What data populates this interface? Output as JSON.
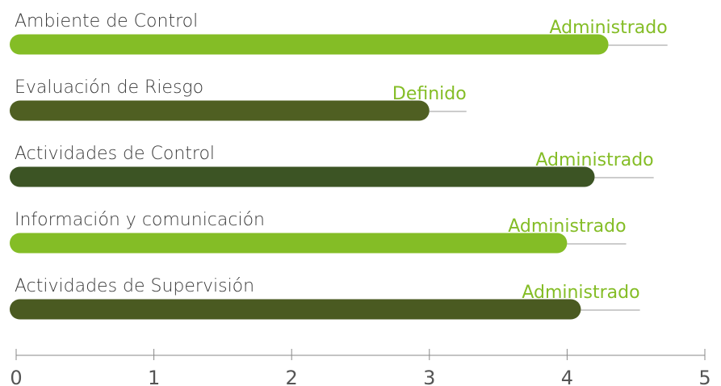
{
  "chart_data": {
    "type": "hbar",
    "categories": [
      "Ambiente de Control",
      "Evaluación de Riesgo",
      "Actividades de Control",
      "Información y comunicación",
      "Actividades de Supervisión"
    ],
    "values": [
      4.3,
      3.0,
      4.2,
      4.0,
      4.1
    ],
    "levels": [
      "Administrado",
      "Definido",
      "Administrado",
      "Administrado",
      "Administrado"
    ],
    "colors": [
      "#84bd26",
      "#4f5f22",
      "#3c5424",
      "#84bd26",
      "#4a5a21"
    ],
    "xlim": [
      0,
      5
    ],
    "xticks": [
      0,
      1,
      2,
      3,
      4,
      5
    ]
  }
}
